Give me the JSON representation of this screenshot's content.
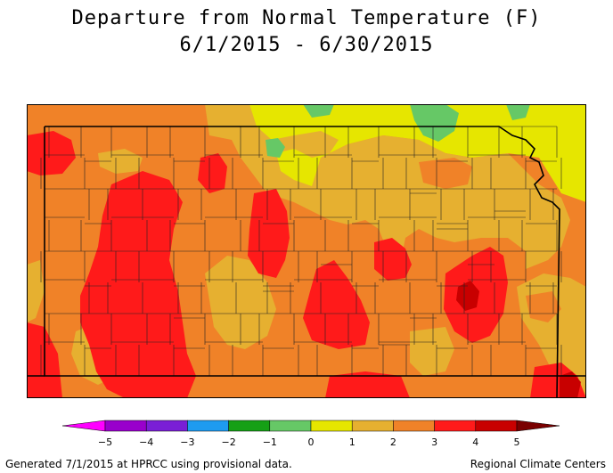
{
  "header": {
    "title": "Departure from Normal Temperature (F)",
    "subtitle": "6/1/2015 - 6/30/2015"
  },
  "legend": {
    "ticks": [
      "−5",
      "−4",
      "−3",
      "−2",
      "−1",
      "0",
      "1",
      "2",
      "3",
      "4",
      "5"
    ],
    "colors": [
      "#ff00ff",
      "#9900cc",
      "#7a1fd6",
      "#1e9bf0",
      "#16a016",
      "#66c866",
      "#e6e600",
      "#e6b030",
      "#f08228",
      "#ff1a1a",
      "#c80000",
      "#7a0000"
    ]
  },
  "map": {
    "colors": {
      "lt0": "#66c866",
      "z0_1": "#e6e600",
      "z1_2": "#e6b030",
      "z2_3": "#f08228",
      "z3_4": "#ff1a1a",
      "z4_5": "#c80000"
    }
  },
  "footer": {
    "left": "Generated 7/1/2015 at HPRCC using provisional data.",
    "right": "Regional Climate Centers"
  }
}
